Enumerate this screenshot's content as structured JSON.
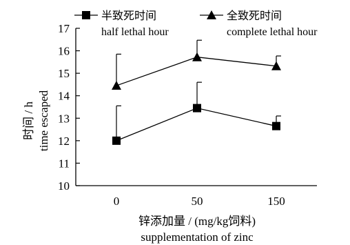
{
  "chart_data": {
    "type": "line",
    "categories": [
      "0",
      "50",
      "150"
    ],
    "series": [
      {
        "name": "半致死时间 half lethal hour",
        "name_zh": "半致死时间",
        "name_en": "half lethal hour",
        "marker": "square",
        "values": [
          12.0,
          13.45,
          12.65
        ],
        "error_upper": [
          1.55,
          1.15,
          0.45
        ]
      },
      {
        "name": "全致死时间 complete lethal hour",
        "name_zh": "全致死时间",
        "name_en": "complete lethal hour",
        "marker": "triangle",
        "values": [
          14.45,
          15.72,
          15.32
        ],
        "error_upper": [
          1.4,
          0.75,
          0.45
        ]
      }
    ],
    "xlabel_zh": "锌添加量 / (mg/kg饲料)",
    "xlabel_en": "supplementation of zinc",
    "ylabel_zh": "时间 / h",
    "ylabel_en": "time escaped",
    "ylim": [
      10,
      17
    ],
    "yticks": [
      10,
      11,
      12,
      13,
      14,
      15,
      16,
      17
    ],
    "grid": false,
    "legend_position": "top"
  }
}
